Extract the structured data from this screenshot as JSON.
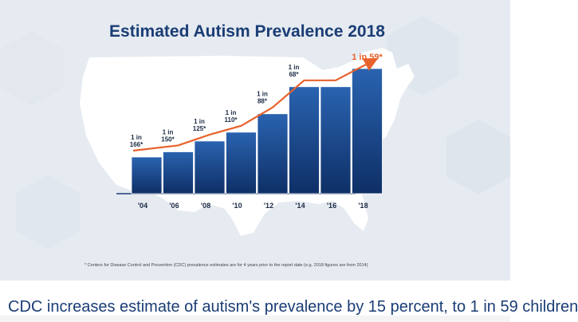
{
  "chart_data": {
    "type": "bar",
    "title": "Estimated Autism Prevalence 2018",
    "categories": [
      "'04",
      "'06",
      "'08",
      "'10",
      "'12",
      "'14",
      "'16",
      "'18"
    ],
    "values": [
      166,
      150,
      125,
      110,
      88,
      68,
      68,
      59
    ],
    "data_labels": [
      {
        "category": "'04",
        "line1": "1 in",
        "line2": "166*"
      },
      {
        "category": "'06",
        "line1": "1 in",
        "line2": "150*"
      },
      {
        "category": "'08",
        "line1": "1 in",
        "line2": "125*"
      },
      {
        "category": "'10",
        "line1": "1 in",
        "line2": "110*"
      },
      {
        "category": "'12",
        "line1": "1 in",
        "line2": "88*"
      },
      {
        "category": "'14",
        "line1": "1 in",
        "line2": "68*"
      },
      {
        "category": "'18",
        "line1": "1 in 59*",
        "line2": ""
      }
    ],
    "footnote": "* Centers for Disease Control and Prevention (CDC) prevalence estimates are for 4 years prior to the report date (e.g. 2018 figures are from 2014)",
    "colors": {
      "bar_top": "#2a63b0",
      "bar_bottom": "#0e2f66",
      "trend": "#e8622c",
      "highlight_label": "#e8622c",
      "title": "#1a3d75",
      "map": "#ffffff",
      "background": "#e6ebf1"
    }
  },
  "caption": "CDC increases estimate of autism's prevalence by 15 percent, to 1 in 59 children"
}
